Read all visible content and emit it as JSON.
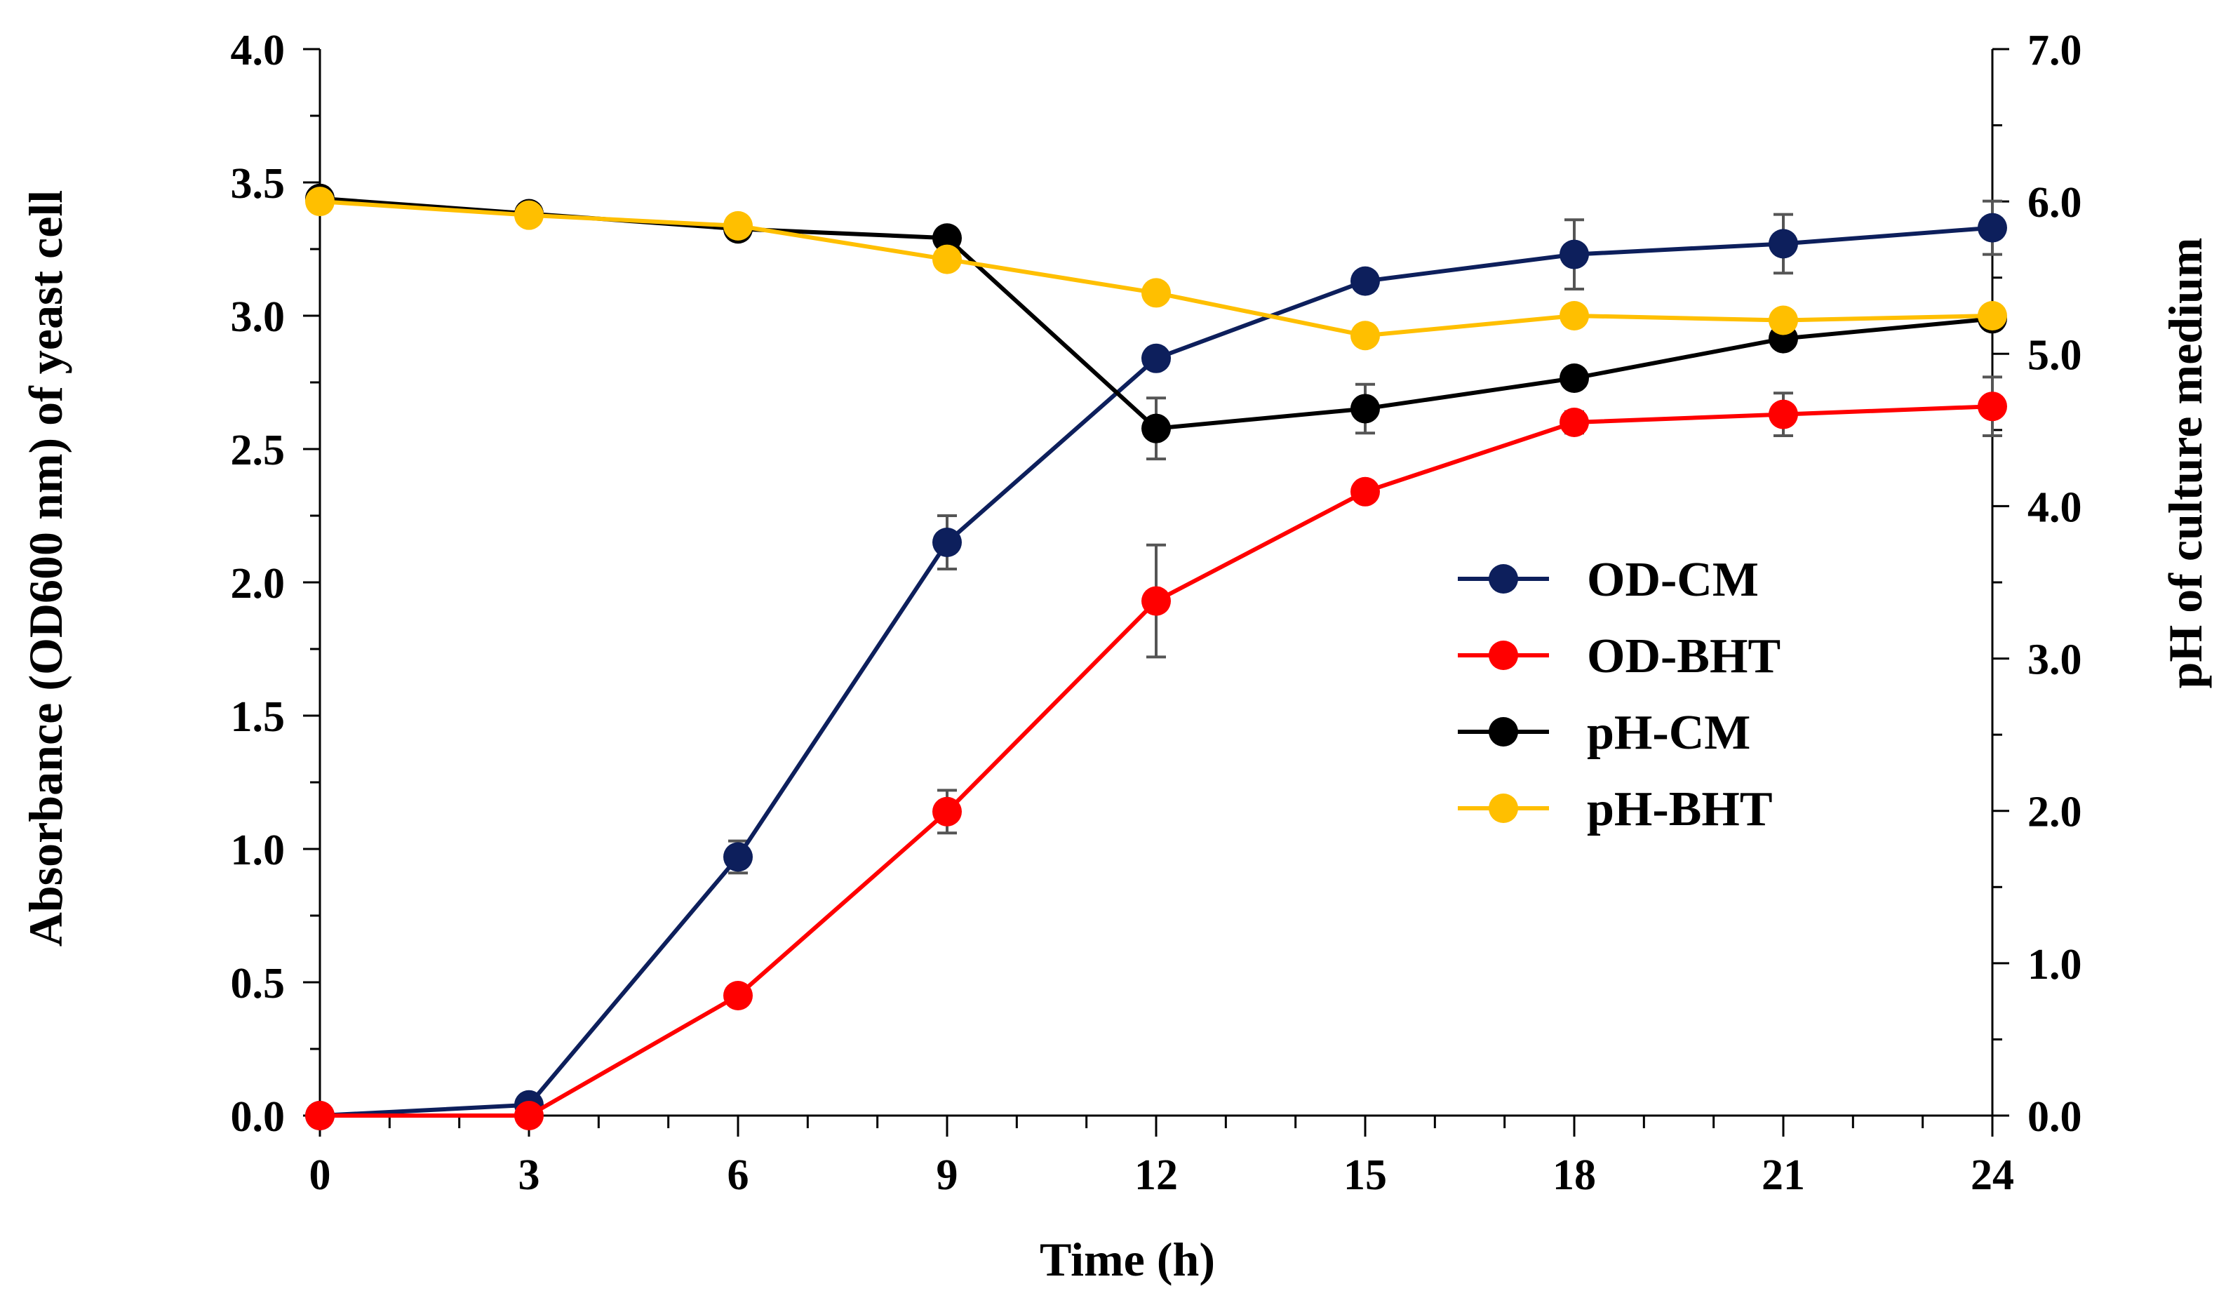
{
  "chart_data": {
    "type": "line",
    "title": "",
    "xlabel": "Time (h)",
    "ylabel": "Absorbance (OD600 nm) of yeast cell",
    "y2label": "pH of culture medium",
    "x": [
      0,
      3,
      6,
      9,
      12,
      15,
      18,
      21,
      24
    ],
    "x_ticks": [
      "0",
      "3",
      "6",
      "9",
      "12",
      "15",
      "18",
      "21",
      "24"
    ],
    "xlim": [
      0,
      24
    ],
    "ylim": [
      0,
      4.0
    ],
    "y_ticks": [
      "0.0",
      "0.5",
      "1.0",
      "1.5",
      "2.0",
      "2.5",
      "3.0",
      "3.5",
      "4.0"
    ],
    "y2lim": [
      0,
      7.0
    ],
    "y2_ticks": [
      "0.0",
      "1.0",
      "2.0",
      "3.0",
      "4.0",
      "5.0",
      "6.0",
      "7.0"
    ],
    "grid": false,
    "legend_position": "right-center",
    "series": [
      {
        "name": "OD-CM",
        "axis": "left",
        "color": "#0d1f5c",
        "values": [
          0.0,
          0.04,
          0.97,
          2.15,
          2.84,
          3.13,
          3.23,
          3.27,
          3.33
        ],
        "errors": [
          0,
          0,
          0.06,
          0.1,
          0,
          0,
          0.13,
          0.11,
          0.1
        ]
      },
      {
        "name": "OD-BHT",
        "axis": "left",
        "color": "#ff0000",
        "values": [
          0.0,
          0.0,
          0.45,
          1.14,
          1.93,
          2.34,
          2.6,
          2.63,
          2.66
        ],
        "errors": [
          0,
          0,
          0,
          0.08,
          0.21,
          0,
          0.04,
          0.08,
          0.11
        ]
      },
      {
        "name": "pH-CM",
        "axis": "right",
        "color": "#000000",
        "values": [
          6.02,
          5.92,
          5.82,
          5.76,
          4.51,
          4.64,
          4.84,
          5.1,
          5.23
        ],
        "errors": [
          0,
          0,
          0,
          0,
          0.2,
          0.16,
          0,
          0,
          0
        ]
      },
      {
        "name": "pH-BHT",
        "axis": "right",
        "color": "#ffbf00",
        "values": [
          6.0,
          5.91,
          5.84,
          5.62,
          5.4,
          5.12,
          5.25,
          5.22,
          5.25
        ],
        "errors": [
          0,
          0,
          0,
          0,
          0,
          0,
          0,
          0,
          0
        ]
      }
    ]
  }
}
